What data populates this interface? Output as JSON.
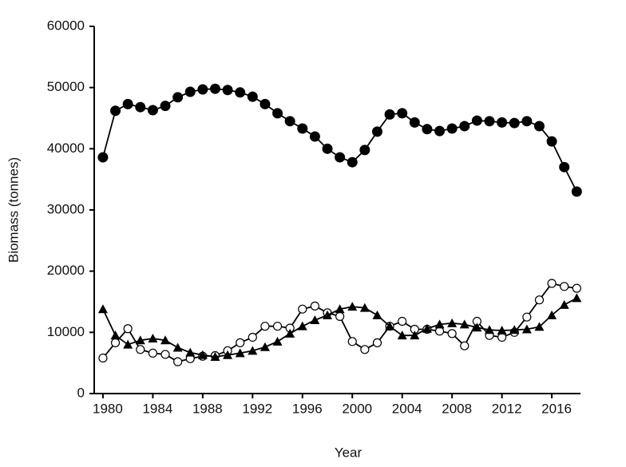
{
  "chart_data": {
    "type": "line",
    "x_label": "Year",
    "y_label": "Biomass (tonnes)",
    "x": [
      1980,
      1981,
      1982,
      1983,
      1984,
      1985,
      1986,
      1987,
      1988,
      1989,
      1990,
      1991,
      1992,
      1993,
      1994,
      1995,
      1996,
      1997,
      1998,
      1999,
      2000,
      2001,
      2002,
      2003,
      2004,
      2005,
      2006,
      2007,
      2008,
      2009,
      2010,
      2011,
      2012,
      2013,
      2014,
      2015,
      2016,
      2017,
      2018
    ],
    "series": [
      {
        "color": "#000000",
        "marker": "filled-circle",
        "values": [
          38600,
          46200,
          47300,
          46800,
          46300,
          47000,
          48400,
          49300,
          49700,
          49800,
          49600,
          49200,
          48500,
          47300,
          45800,
          44500,
          43300,
          42000,
          40000,
          38600,
          37800,
          39800,
          42800,
          45600,
          45800,
          44300,
          43200,
          42900,
          43300,
          43700,
          44600,
          44500,
          44300,
          44200,
          44500,
          43700,
          41200,
          37000,
          33000
        ]
      },
      {
        "color": "#000000",
        "marker": "open-circle",
        "values": [
          5800,
          8300,
          10600,
          7200,
          6600,
          6400,
          5200,
          5700,
          6100,
          6200,
          7000,
          8300,
          9200,
          11000,
          11000,
          10700,
          13800,
          14300,
          13200,
          12600,
          8500,
          7200,
          8300,
          11000,
          11800,
          10500,
          10500,
          10200,
          9800,
          7800,
          11800,
          9500,
          9200,
          10000,
          12500,
          15300,
          18000,
          17500,
          17200
        ]
      },
      {
        "color": "#000000",
        "marker": "triangle",
        "values": [
          13800,
          9500,
          8000,
          8700,
          9000,
          8700,
          7500,
          6700,
          6300,
          6000,
          6300,
          6600,
          7000,
          7600,
          8500,
          9800,
          11000,
          12000,
          12800,
          13800,
          14200,
          14000,
          12800,
          11000,
          9500,
          9500,
          10600,
          11300,
          11500,
          11300,
          10800,
          10400,
          10300,
          10400,
          10500,
          10900,
          12800,
          14500,
          15600
        ]
      }
    ],
    "xlim": [
      1979.3,
      2018.3
    ],
    "xticks": [
      1980,
      1984,
      1988,
      1992,
      1996,
      2000,
      2004,
      2008,
      2012,
      2016
    ],
    "ylim": [
      0,
      60000
    ],
    "yticks": [
      0,
      10000,
      20000,
      30000,
      40000,
      50000,
      60000
    ]
  }
}
